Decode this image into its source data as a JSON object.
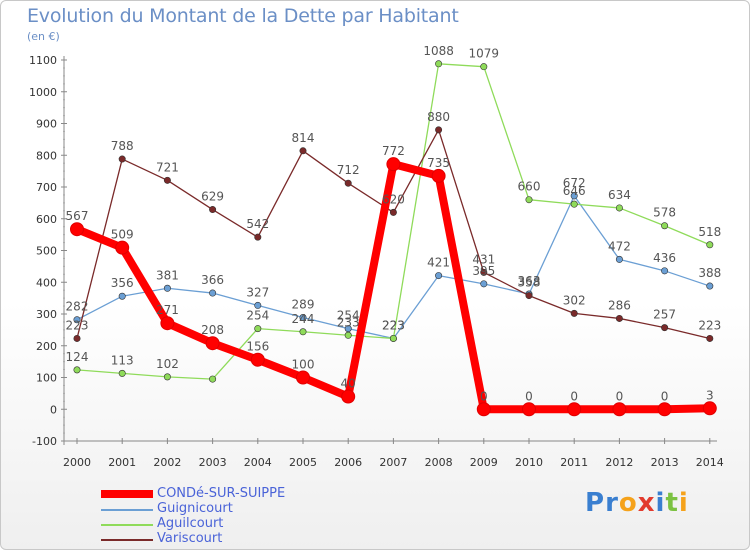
{
  "chart_data": {
    "type": "line",
    "title": "Evolution du Montant de la Dette par Habitant",
    "unit": "(en €)",
    "categories": [
      "2000",
      "2001",
      "2002",
      "2003",
      "2004",
      "2005",
      "2006",
      "2007",
      "2008",
      "2009",
      "2010",
      "2011",
      "2012",
      "2013",
      "2014"
    ],
    "ylim": [
      -100,
      1100
    ],
    "yticks": [
      -100,
      0,
      100,
      200,
      300,
      400,
      500,
      600,
      700,
      800,
      900,
      1000,
      1100
    ],
    "grid": false,
    "legend_position": "bottom-left",
    "series": [
      {
        "name": "CONDé-SUR-SUIPPE",
        "color": "#ff0000",
        "emphasis": true,
        "values": [
          567,
          509,
          271,
          208,
          156,
          100,
          40,
          772,
          735,
          0,
          0,
          0,
          0,
          0,
          3
        ]
      },
      {
        "name": "Guignicourt",
        "color": "#6b9fd4",
        "emphasis": false,
        "values": [
          282,
          356,
          381,
          366,
          327,
          289,
          254,
          223,
          421,
          395,
          363,
          672,
          472,
          436,
          388
        ]
      },
      {
        "name": "Aguilcourt",
        "color": "#8fdb5a",
        "emphasis": false,
        "values": [
          124,
          113,
          102,
          95,
          254,
          244,
          233,
          223,
          1088,
          1079,
          660,
          646,
          634,
          578,
          518
        ]
      },
      {
        "name": "Variscourt",
        "color": "#7a2a2a",
        "emphasis": false,
        "values": [
          223,
          788,
          721,
          629,
          542,
          814,
          712,
          620,
          880,
          431,
          358,
          302,
          286,
          257,
          223
        ]
      }
    ],
    "point_labels": [
      [
        "567",
        "509",
        "271",
        "208",
        "156",
        "100",
        "40",
        "772",
        "735",
        "0",
        "0",
        "0",
        "0",
        "0",
        "3"
      ],
      [
        "282",
        "356",
        "381",
        "366",
        "327",
        "289",
        "254",
        "223",
        "421",
        "395",
        "363",
        "672",
        "472",
        "436",
        "388"
      ],
      [
        "124",
        "113",
        "102",
        "",
        "254",
        "244",
        "233",
        "223",
        "1088",
        "1079",
        "660",
        "646",
        "634",
        "578",
        "518"
      ],
      [
        "223",
        "788",
        "721",
        "629",
        "542",
        "814",
        "712",
        "620",
        "880",
        "431",
        "358",
        "302",
        "286",
        "257",
        "223"
      ]
    ]
  },
  "branding": {
    "logo_text": "Proxiti",
    "logo_letters": [
      {
        "ch": "P",
        "color": "#3a7fd0"
      },
      {
        "ch": "r",
        "color": "#3a7fd0"
      },
      {
        "ch": "o",
        "color": "#f5a21b"
      },
      {
        "ch": "x",
        "color": "#e23b2e"
      },
      {
        "ch": "i",
        "color": "#3a7fd0"
      },
      {
        "ch": "t",
        "color": "#7cc242"
      },
      {
        "ch": "i",
        "color": "#f5a21b"
      }
    ]
  }
}
